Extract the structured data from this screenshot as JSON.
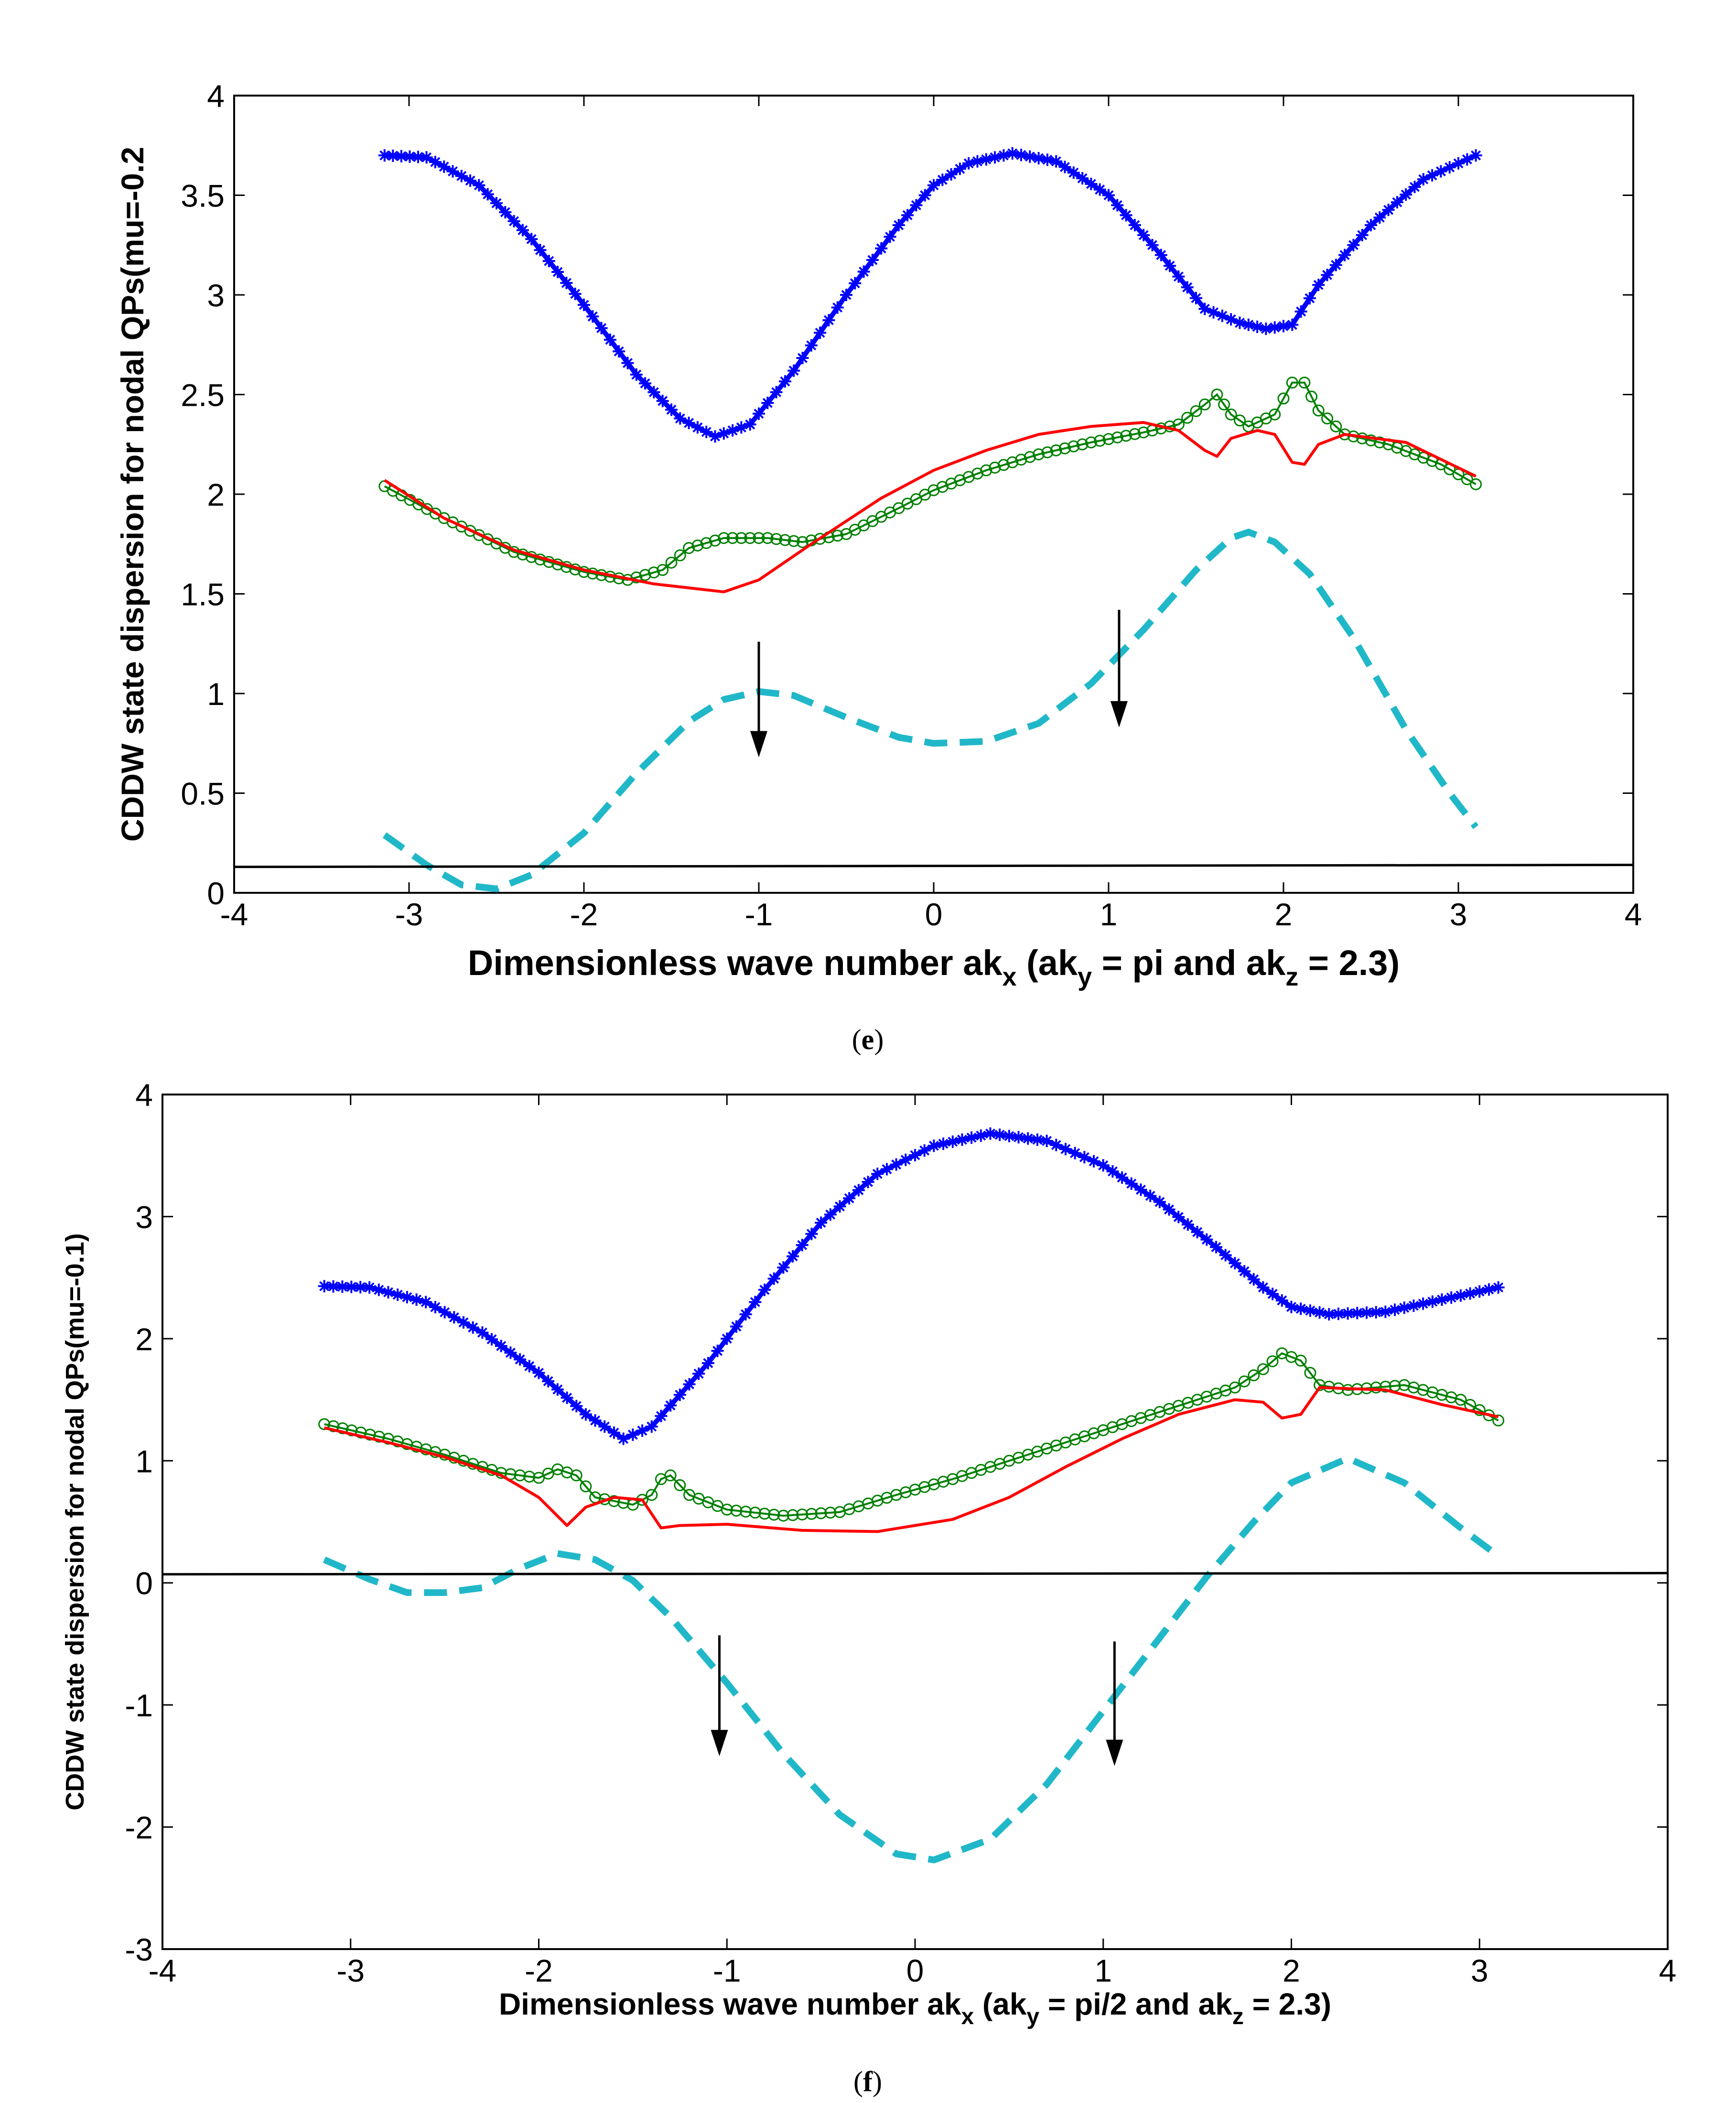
{
  "chart_data": [
    {
      "type": "line",
      "panel": "e",
      "caption_letter": "e",
      "ylabel": "CDDW state dispersion for nodal QPs(mu=-0.2",
      "xlabel": {
        "before_sub1": "Dimensionless wave number ak",
        "sub1": "x",
        "mid": " (ak",
        "sub2": "y",
        "mid2": " = pi and ak",
        "sub3": "z",
        "after": " = 2.3)"
      },
      "xlim": [
        -4,
        4
      ],
      "ylim": [
        0,
        4
      ],
      "xticks": [
        -4,
        -3,
        -2,
        -1,
        0,
        1,
        2,
        3,
        4
      ],
      "xtick_labels": [
        "-4",
        "-3",
        "-2",
        "-1",
        "0",
        "1",
        "2",
        "3",
        "4"
      ],
      "yticks": [
        0,
        0.5,
        1,
        1.5,
        2,
        2.5,
        3,
        3.5,
        4
      ],
      "ytick_labels": [
        "0",
        "0.5",
        "1",
        "1.5",
        "2",
        "2.5",
        "3",
        "3.5",
        "4"
      ],
      "series": [
        {
          "name": "blue-star",
          "color": "#0000ff",
          "marker": "star",
          "points": [
            [
              -3.14,
              3.7
            ],
            [
              -2.9,
              3.69
            ],
            [
              -2.6,
              3.55
            ],
            [
              -2.3,
              3.28
            ],
            [
              -2.0,
              2.95
            ],
            [
              -1.7,
              2.6
            ],
            [
              -1.45,
              2.38
            ],
            [
              -1.25,
              2.29
            ],
            [
              -1.05,
              2.35
            ],
            [
              -0.8,
              2.62
            ],
            [
              -0.5,
              3.0
            ],
            [
              -0.2,
              3.35
            ],
            [
              0.0,
              3.55
            ],
            [
              0.2,
              3.66
            ],
            [
              0.45,
              3.71
            ],
            [
              0.7,
              3.67
            ],
            [
              1.0,
              3.5
            ],
            [
              1.3,
              3.2
            ],
            [
              1.55,
              2.93
            ],
            [
              1.75,
              2.86
            ],
            [
              1.9,
              2.83
            ],
            [
              2.05,
              2.85
            ],
            [
              2.2,
              3.05
            ],
            [
              2.5,
              3.35
            ],
            [
              2.8,
              3.58
            ],
            [
              3.1,
              3.7
            ]
          ]
        },
        {
          "name": "green-circle",
          "color": "#008000",
          "marker": "circle",
          "points": [
            [
              -3.14,
              2.04
            ],
            [
              -2.8,
              1.88
            ],
            [
              -2.4,
              1.71
            ],
            [
              -2.0,
              1.61
            ],
            [
              -1.75,
              1.57
            ],
            [
              -1.55,
              1.62
            ],
            [
              -1.4,
              1.73
            ],
            [
              -1.2,
              1.78
            ],
            [
              -0.95,
              1.78
            ],
            [
              -0.75,
              1.76
            ],
            [
              -0.5,
              1.8
            ],
            [
              -0.2,
              1.93
            ],
            [
              0.0,
              2.02
            ],
            [
              0.3,
              2.12
            ],
            [
              0.6,
              2.2
            ],
            [
              0.9,
              2.26
            ],
            [
              1.2,
              2.31
            ],
            [
              1.4,
              2.35
            ],
            [
              1.55,
              2.45
            ],
            [
              1.62,
              2.5
            ],
            [
              1.7,
              2.4
            ],
            [
              1.8,
              2.34
            ],
            [
              1.95,
              2.4
            ],
            [
              2.05,
              2.56
            ],
            [
              2.12,
              2.56
            ],
            [
              2.2,
              2.42
            ],
            [
              2.35,
              2.3
            ],
            [
              2.6,
              2.25
            ],
            [
              2.9,
              2.15
            ],
            [
              3.1,
              2.05
            ]
          ]
        },
        {
          "name": "red-line",
          "color": "#ff0000",
          "marker": "none",
          "points": [
            [
              -3.14,
              2.07
            ],
            [
              -2.8,
              1.88
            ],
            [
              -2.4,
              1.72
            ],
            [
              -2.0,
              1.62
            ],
            [
              -1.6,
              1.55
            ],
            [
              -1.2,
              1.51
            ],
            [
              -1.0,
              1.57
            ],
            [
              -0.7,
              1.75
            ],
            [
              -0.3,
              1.98
            ],
            [
              0.0,
              2.12
            ],
            [
              0.3,
              2.22
            ],
            [
              0.6,
              2.3
            ],
            [
              0.9,
              2.34
            ],
            [
              1.2,
              2.36
            ],
            [
              1.4,
              2.32
            ],
            [
              1.55,
              2.22
            ],
            [
              1.62,
              2.19
            ],
            [
              1.7,
              2.28
            ],
            [
              1.85,
              2.32
            ],
            [
              1.95,
              2.3
            ],
            [
              2.05,
              2.16
            ],
            [
              2.12,
              2.15
            ],
            [
              2.2,
              2.25
            ],
            [
              2.35,
              2.3
            ],
            [
              2.7,
              2.26
            ],
            [
              3.1,
              2.09
            ]
          ]
        },
        {
          "name": "cyan-dashed",
          "color": "#20b8c8",
          "marker": "dashed",
          "points": [
            [
              -3.14,
              0.29
            ],
            [
              -2.9,
              0.14
            ],
            [
              -2.7,
              0.04
            ],
            [
              -2.5,
              0.02
            ],
            [
              -2.3,
              0.09
            ],
            [
              -2.0,
              0.3
            ],
            [
              -1.7,
              0.6
            ],
            [
              -1.4,
              0.86
            ],
            [
              -1.2,
              0.97
            ],
            [
              -1.0,
              1.01
            ],
            [
              -0.8,
              0.99
            ],
            [
              -0.5,
              0.88
            ],
            [
              -0.2,
              0.78
            ],
            [
              0.0,
              0.75
            ],
            [
              0.3,
              0.76
            ],
            [
              0.6,
              0.85
            ],
            [
              0.9,
              1.05
            ],
            [
              1.2,
              1.32
            ],
            [
              1.5,
              1.62
            ],
            [
              1.7,
              1.78
            ],
            [
              1.8,
              1.81
            ],
            [
              1.95,
              1.76
            ],
            [
              2.15,
              1.6
            ],
            [
              2.4,
              1.28
            ],
            [
              2.7,
              0.82
            ],
            [
              2.95,
              0.5
            ],
            [
              3.1,
              0.33
            ]
          ]
        },
        {
          "name": "black-baseline",
          "color": "#000000",
          "marker": "none",
          "points": [
            [
              -4,
              0.13
            ],
            [
              4,
              0.14
            ]
          ]
        }
      ],
      "annotations": [
        {
          "name": "arrow-left",
          "x": -1.0,
          "y_from": 1.26,
          "y_to": 0.68
        },
        {
          "name": "arrow-right",
          "x": 1.06,
          "y_from": 1.42,
          "y_to": 0.83
        }
      ]
    },
    {
      "type": "line",
      "panel": "f",
      "caption_letter": "f",
      "ylabel": "CDDW state dispersion for nodal QPs(mu=-0.1)",
      "xlabel": {
        "before_sub1": "Dimensionless wave number ak",
        "sub1": "x",
        "mid": " (ak",
        "sub2": "y",
        "mid2": " = pi/2 and ak",
        "sub3": "z",
        "after": " = 2.3)"
      },
      "xlim": [
        -4,
        4
      ],
      "ylim": [
        -3,
        4
      ],
      "xticks": [
        -4,
        -3,
        -2,
        -1,
        0,
        1,
        2,
        3,
        4
      ],
      "xtick_labels": [
        "-4",
        "-3",
        "-2",
        "-1",
        "0",
        "1",
        "2",
        "3",
        "4"
      ],
      "yticks": [
        -3,
        -2,
        -1,
        0,
        1,
        2,
        3,
        4
      ],
      "ytick_labels": [
        "-3",
        "-2",
        "-1",
        "0",
        "1",
        "2",
        "3",
        "4"
      ],
      "series": [
        {
          "name": "blue-star",
          "color": "#0000ff",
          "marker": "star",
          "points": [
            [
              -3.14,
              2.43
            ],
            [
              -2.9,
              2.42
            ],
            [
              -2.6,
              2.3
            ],
            [
              -2.3,
              2.05
            ],
            [
              -2.0,
              1.72
            ],
            [
              -1.75,
              1.38
            ],
            [
              -1.55,
              1.18
            ],
            [
              -1.4,
              1.28
            ],
            [
              -1.1,
              1.8
            ],
            [
              -0.8,
              2.4
            ],
            [
              -0.5,
              2.95
            ],
            [
              -0.2,
              3.35
            ],
            [
              0.1,
              3.58
            ],
            [
              0.4,
              3.68
            ],
            [
              0.7,
              3.62
            ],
            [
              1.0,
              3.42
            ],
            [
              1.3,
              3.12
            ],
            [
              1.6,
              2.75
            ],
            [
              1.85,
              2.42
            ],
            [
              2.0,
              2.26
            ],
            [
              2.2,
              2.2
            ],
            [
              2.5,
              2.22
            ],
            [
              2.8,
              2.32
            ],
            [
              3.1,
              2.42
            ]
          ]
        },
        {
          "name": "green-circle",
          "color": "#008000",
          "marker": "circle",
          "points": [
            [
              -3.14,
              1.3
            ],
            [
              -2.8,
              1.18
            ],
            [
              -2.5,
              1.05
            ],
            [
              -2.2,
              0.9
            ],
            [
              -2.0,
              0.86
            ],
            [
              -1.9,
              0.93
            ],
            [
              -1.8,
              0.88
            ],
            [
              -1.7,
              0.7
            ],
            [
              -1.5,
              0.64
            ],
            [
              -1.4,
              0.72
            ],
            [
              -1.35,
              0.85
            ],
            [
              -1.3,
              0.88
            ],
            [
              -1.2,
              0.72
            ],
            [
              -1.0,
              0.6
            ],
            [
              -0.7,
              0.55
            ],
            [
              -0.4,
              0.58
            ],
            [
              -0.1,
              0.72
            ],
            [
              0.2,
              0.85
            ],
            [
              0.5,
              1.0
            ],
            [
              0.8,
              1.15
            ],
            [
              1.1,
              1.3
            ],
            [
              1.4,
              1.45
            ],
            [
              1.7,
              1.6
            ],
            [
              1.85,
              1.75
            ],
            [
              1.95,
              1.88
            ],
            [
              2.05,
              1.82
            ],
            [
              2.15,
              1.62
            ],
            [
              2.3,
              1.58
            ],
            [
              2.6,
              1.62
            ],
            [
              2.9,
              1.5
            ],
            [
              3.1,
              1.33
            ]
          ]
        },
        {
          "name": "red-line",
          "color": "#ff0000",
          "marker": "none",
          "points": [
            [
              -3.14,
              1.27
            ],
            [
              -2.8,
              1.15
            ],
            [
              -2.5,
              1.03
            ],
            [
              -2.2,
              0.88
            ],
            [
              -2.0,
              0.7
            ],
            [
              -1.85,
              0.47
            ],
            [
              -1.75,
              0.62
            ],
            [
              -1.6,
              0.7
            ],
            [
              -1.45,
              0.68
            ],
            [
              -1.35,
              0.45
            ],
            [
              -1.25,
              0.47
            ],
            [
              -1.0,
              0.48
            ],
            [
              -0.6,
              0.43
            ],
            [
              -0.2,
              0.42
            ],
            [
              0.2,
              0.52
            ],
            [
              0.5,
              0.7
            ],
            [
              0.8,
              0.95
            ],
            [
              1.1,
              1.18
            ],
            [
              1.4,
              1.38
            ],
            [
              1.7,
              1.5
            ],
            [
              1.85,
              1.48
            ],
            [
              1.95,
              1.35
            ],
            [
              2.05,
              1.38
            ],
            [
              2.15,
              1.6
            ],
            [
              2.5,
              1.58
            ],
            [
              2.8,
              1.46
            ],
            [
              3.1,
              1.36
            ]
          ]
        },
        {
          "name": "cyan-dashed",
          "color": "#20b8c8",
          "marker": "dashed",
          "points": [
            [
              -3.14,
              0.19
            ],
            [
              -2.9,
              0.03
            ],
            [
              -2.7,
              -0.08
            ],
            [
              -2.5,
              -0.08
            ],
            [
              -2.3,
              -0.04
            ],
            [
              -2.1,
              0.12
            ],
            [
              -1.9,
              0.24
            ],
            [
              -1.7,
              0.19
            ],
            [
              -1.5,
              0.02
            ],
            [
              -1.3,
              -0.28
            ],
            [
              -1.0,
              -0.82
            ],
            [
              -0.7,
              -1.4
            ],
            [
              -0.4,
              -1.9
            ],
            [
              -0.1,
              -2.22
            ],
            [
              0.1,
              -2.27
            ],
            [
              0.4,
              -2.1
            ],
            [
              0.7,
              -1.65
            ],
            [
              1.0,
              -1.05
            ],
            [
              1.3,
              -0.45
            ],
            [
              1.55,
              0.05
            ],
            [
              1.8,
              0.5
            ],
            [
              2.0,
              0.82
            ],
            [
              2.3,
              1.02
            ],
            [
              2.6,
              0.82
            ],
            [
              2.9,
              0.45
            ],
            [
              3.1,
              0.22
            ]
          ]
        },
        {
          "name": "black-baseline",
          "color": "#000000",
          "marker": "none",
          "points": [
            [
              -4,
              0.07
            ],
            [
              4,
              0.08
            ]
          ]
        }
      ],
      "annotations": [
        {
          "name": "arrow-left",
          "x": -1.04,
          "y_from": -0.43,
          "y_to": -1.42
        },
        {
          "name": "arrow-right",
          "x": 1.06,
          "y_from": -0.48,
          "y_to": -1.5
        }
      ]
    }
  ]
}
